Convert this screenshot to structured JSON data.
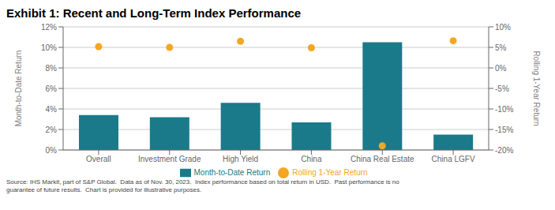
{
  "chart_data": {
    "type": "bar",
    "title": "Exhibit 1: Recent and Long-Term Index Performance",
    "categories": [
      "Overall",
      "Investment Grade",
      "High Yield",
      "China",
      "China Real Estate",
      "China LGFV"
    ],
    "series": [
      {
        "name": "Month-to-Date Return",
        "type": "bar",
        "color": "#1a7a8a",
        "values": [
          3.4,
          3.2,
          4.6,
          2.7,
          10.5,
          1.5
        ]
      },
      {
        "name": "Rolling 1-Year Return",
        "type": "scatter",
        "axis": "y2",
        "color": "#f5a623",
        "marker": "circle",
        "values": [
          5.2,
          5.0,
          6.5,
          4.9,
          -19.0,
          6.6
        ]
      }
    ],
    "ylabel": "Month-to-Date Return",
    "y2label": "Rolling 1-Year Return",
    "ylim": [
      0,
      12
    ],
    "yticks": [
      {
        "value": 0,
        "label": "0%"
      },
      {
        "value": 2,
        "label": "2%"
      },
      {
        "value": 4,
        "label": "4%"
      },
      {
        "value": 6,
        "label": "6%"
      },
      {
        "value": 8,
        "label": "8%"
      },
      {
        "value": 10,
        "label": "10%"
      },
      {
        "value": 12,
        "label": "12%"
      }
    ],
    "y2lim": [
      -20,
      10
    ],
    "y2ticks": [
      {
        "value": -20,
        "label": "-20%"
      },
      {
        "value": -15,
        "label": "-15%"
      },
      {
        "value": -10,
        "label": "-10%"
      },
      {
        "value": -5,
        "label": "-5%"
      },
      {
        "value": 0,
        "label": "0%"
      },
      {
        "value": 5,
        "label": "5%"
      },
      {
        "value": 10,
        "label": "10%"
      }
    ],
    "grid": true,
    "legend": "bottom",
    "annotations": [
      "Source: IHS Markit, part of S&P Global.  Data as of Nov. 30, 2023.  Index performance based on total return in USD.  Past performance is no\nguarantee of future results.  Chart is provided for illustrative purposes."
    ]
  }
}
